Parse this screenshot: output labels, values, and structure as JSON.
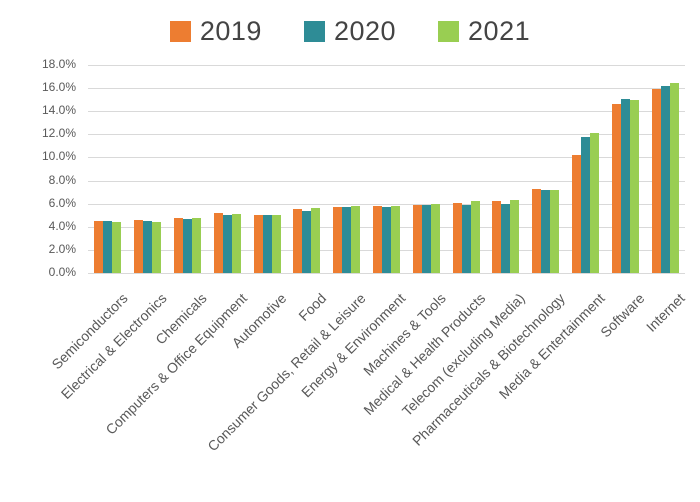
{
  "chart": {
    "background_color": "#FFFFFF",
    "text_color": "#595959",
    "legend_text_color": "#444444",
    "grid_color": "#D9D9D9"
  },
  "chart_data": {
    "type": "bar",
    "title": "",
    "xlabel": "",
    "ylabel": "",
    "legend_position": "top",
    "grid": true,
    "ylim": [
      0,
      18
    ],
    "ytick_step": 2,
    "yticks": [
      "0.0%",
      "2.0%",
      "4.0%",
      "6.0%",
      "8.0%",
      "10.0%",
      "12.0%",
      "14.0%",
      "16.0%",
      "18.0%"
    ],
    "categories": [
      "Semiconductors",
      "Electrical & Electronics",
      "Chemicals",
      "Computers & Office Equipment",
      "Automotive",
      "Food",
      "Consumer Goods, Retail & Leisure",
      "Energy & Environment",
      "Machines & Tools",
      "Medical & Health Products",
      "Telecom (excluding Media)",
      "Pharmaceuticals & Biotechnology",
      "Media & Entertainment",
      "Software",
      "Internet"
    ],
    "series": [
      {
        "name": "2019",
        "color": "#ED7D31",
        "values": [
          4.5,
          4.6,
          4.8,
          5.2,
          5.0,
          5.5,
          5.7,
          5.8,
          5.9,
          6.1,
          6.2,
          7.3,
          10.2,
          14.6,
          15.9
        ]
      },
      {
        "name": "2020",
        "color": "#2E8C96",
        "values": [
          4.5,
          4.5,
          4.7,
          5.0,
          5.0,
          5.4,
          5.7,
          5.7,
          5.9,
          5.9,
          6.0,
          7.2,
          11.8,
          15.1,
          16.2
        ]
      },
      {
        "name": "2021",
        "color": "#99CE52",
        "values": [
          4.4,
          4.4,
          4.8,
          5.1,
          5.0,
          5.6,
          5.8,
          5.8,
          6.0,
          6.2,
          6.3,
          7.2,
          12.1,
          15.0,
          16.4
        ]
      }
    ]
  }
}
